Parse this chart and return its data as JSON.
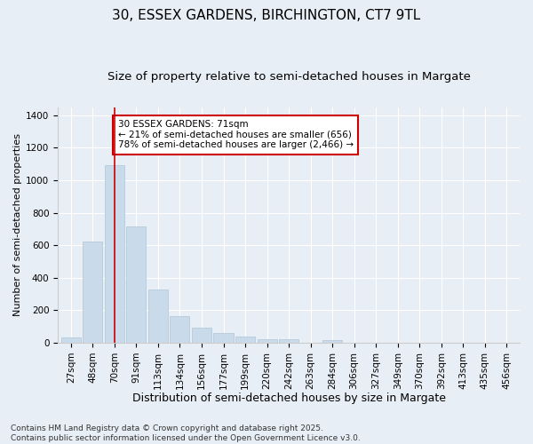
{
  "title_line1": "30, ESSEX GARDENS, BIRCHINGTON, CT7 9TL",
  "title_line2": "Size of property relative to semi-detached houses in Margate",
  "xlabel": "Distribution of semi-detached houses by size in Margate",
  "ylabel": "Number of semi-detached properties",
  "categories": [
    "27sqm",
    "48sqm",
    "70sqm",
    "91sqm",
    "113sqm",
    "134sqm",
    "156sqm",
    "177sqm",
    "199sqm",
    "220sqm",
    "242sqm",
    "263sqm",
    "284sqm",
    "306sqm",
    "327sqm",
    "349sqm",
    "370sqm",
    "392sqm",
    "413sqm",
    "435sqm",
    "456sqm"
  ],
  "values": [
    35,
    620,
    1090,
    715,
    325,
    165,
    95,
    60,
    37,
    20,
    20,
    0,
    18,
    0,
    0,
    0,
    0,
    0,
    0,
    0,
    0
  ],
  "bar_color": "#c9daea",
  "bar_edge_color": "#afc5d5",
  "vline_x_idx": 2,
  "vline_color": "#cc0000",
  "annotation_text": "30 ESSEX GARDENS: 71sqm\n← 21% of semi-detached houses are smaller (656)\n78% of semi-detached houses are larger (2,466) →",
  "annotation_box_facecolor": "#ffffff",
  "annotation_box_edgecolor": "#cc0000",
  "ylim": [
    0,
    1450
  ],
  "yticks": [
    0,
    200,
    400,
    600,
    800,
    1000,
    1200,
    1400
  ],
  "background_color": "#e8eef5",
  "grid_color": "#ffffff",
  "footer_text": "Contains HM Land Registry data © Crown copyright and database right 2025.\nContains public sector information licensed under the Open Government Licence v3.0.",
  "title_fontsize": 11,
  "subtitle_fontsize": 9.5,
  "xlabel_fontsize": 9,
  "ylabel_fontsize": 8,
  "tick_fontsize": 7.5,
  "annotation_fontsize": 7.5,
  "footer_fontsize": 6.5
}
